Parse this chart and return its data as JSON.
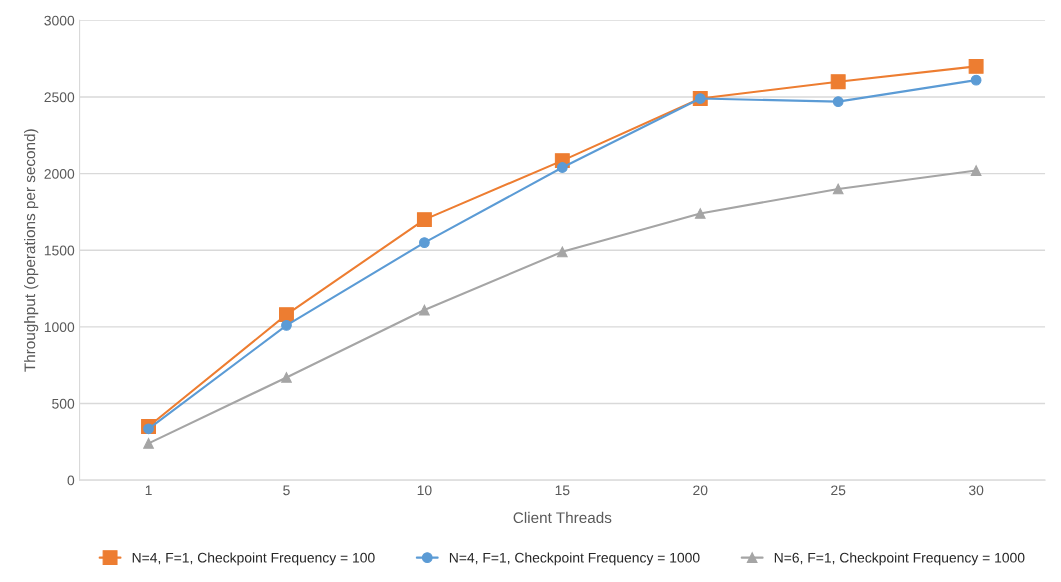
{
  "chart_data": {
    "type": "line",
    "xlabel": "Client Threads",
    "ylabel": "Throughput (operations per second)",
    "categories": [
      "1",
      "5",
      "10",
      "15",
      "20",
      "25",
      "30"
    ],
    "series": [
      {
        "name": "N=4, F=1, Checkpoint Frequency = 100",
        "color": "#ed7d31",
        "marker": "square",
        "values": [
          350,
          1080,
          1700,
          2085,
          2490,
          2600,
          2700
        ]
      },
      {
        "name": "N=4, F=1, Checkpoint Frequency = 1000",
        "color": "#5b9bd5",
        "marker": "circle",
        "values": [
          335,
          1010,
          1550,
          2040,
          2490,
          2470,
          2610
        ]
      },
      {
        "name": "N=6, F=1, Checkpoint Frequency = 1000",
        "color": "#a5a5a5",
        "marker": "triangle",
        "values": [
          240,
          670,
          1110,
          1490,
          1740,
          1900,
          2020
        ]
      }
    ],
    "ylim": [
      0,
      3000
    ],
    "yticks": [
      0,
      500,
      1000,
      1500,
      2000,
      2500,
      3000
    ],
    "grid": "y",
    "legend": "bottom",
    "line_style": "solid"
  }
}
